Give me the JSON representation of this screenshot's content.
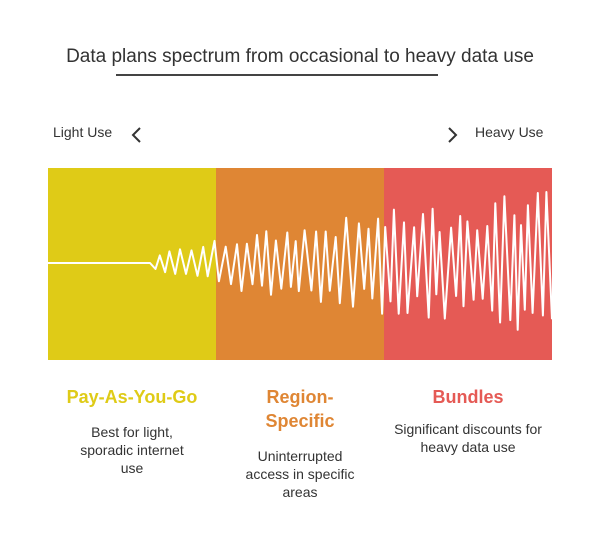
{
  "title": "Data plans spectrum from occasional to heavy data use",
  "axis": {
    "left_label": "Light Use",
    "right_label": "Heavy Use"
  },
  "colors": {
    "pay_as_you_go": "#DFCB17",
    "region_specific": "#DF8634",
    "bundles": "#E55A55",
    "wave": "#FFFFFF"
  },
  "icons": {
    "left": "chevron-left-icon",
    "right": "chevron-right-icon"
  },
  "plans": [
    {
      "name": "Pay-As-You-Go",
      "line1": "Pay-As-You-Go",
      "line2": "",
      "description": "Best for light, sporadic internet use"
    },
    {
      "name": "Region-Specific",
      "line1": "Region-",
      "line2": "Specific",
      "description": "Uninterrupted access in specific areas"
    },
    {
      "name": "Bundles",
      "line1": "Bundles",
      "line2": "",
      "description": "Significant discounts for heavy data use"
    }
  ]
}
